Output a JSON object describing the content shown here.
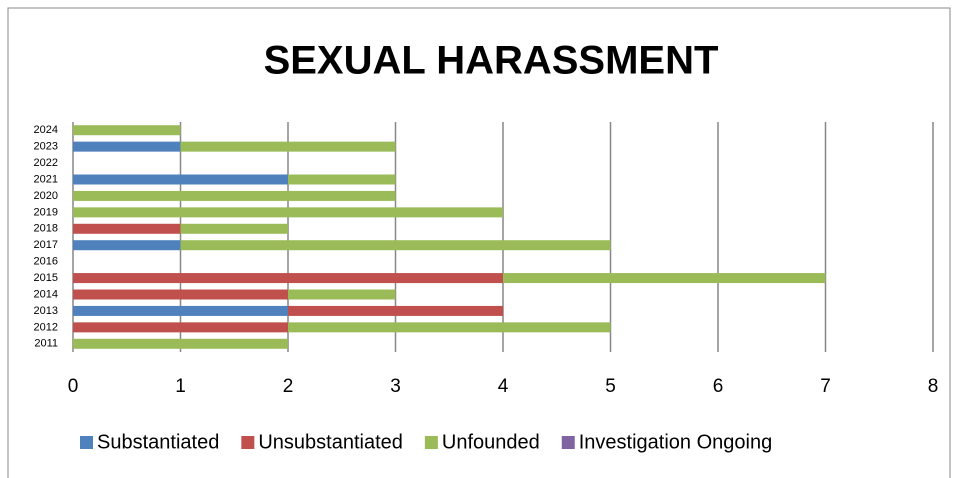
{
  "chart_data": {
    "type": "stacked_barh",
    "title": "SEXUAL HARASSMENT",
    "categories": [
      "2011",
      "2012",
      "2013",
      "2014",
      "2015",
      "2016",
      "2017",
      "2018",
      "2019",
      "2020",
      "2021",
      "2022",
      "2023",
      "2024"
    ],
    "series": [
      {
        "name": "Substantiated",
        "color": "#4f81bd",
        "values": [
          0,
          0,
          2,
          0,
          0,
          0,
          1,
          0,
          0,
          0,
          2,
          0,
          1,
          0
        ]
      },
      {
        "name": "Unsubstantiated",
        "color": "#c0504d",
        "values": [
          0,
          2,
          2,
          2,
          4,
          0,
          0,
          1,
          0,
          0,
          0,
          0,
          0,
          0
        ]
      },
      {
        "name": "Unfounded",
        "color": "#9bbb59",
        "values": [
          2,
          3,
          0,
          1,
          3,
          0,
          4,
          1,
          4,
          3,
          1,
          0,
          2,
          1
        ]
      },
      {
        "name": "Investigation Ongoing",
        "color": "#8064a2",
        "values": [
          0,
          0,
          0,
          0,
          0,
          0,
          0,
          0,
          0,
          0,
          0,
          0,
          0,
          0
        ]
      }
    ],
    "xlim": [
      0,
      8
    ],
    "xticks": [
      0,
      1,
      2,
      3,
      4,
      5,
      6,
      7,
      8
    ],
    "grid": true,
    "legend": "bottom"
  }
}
